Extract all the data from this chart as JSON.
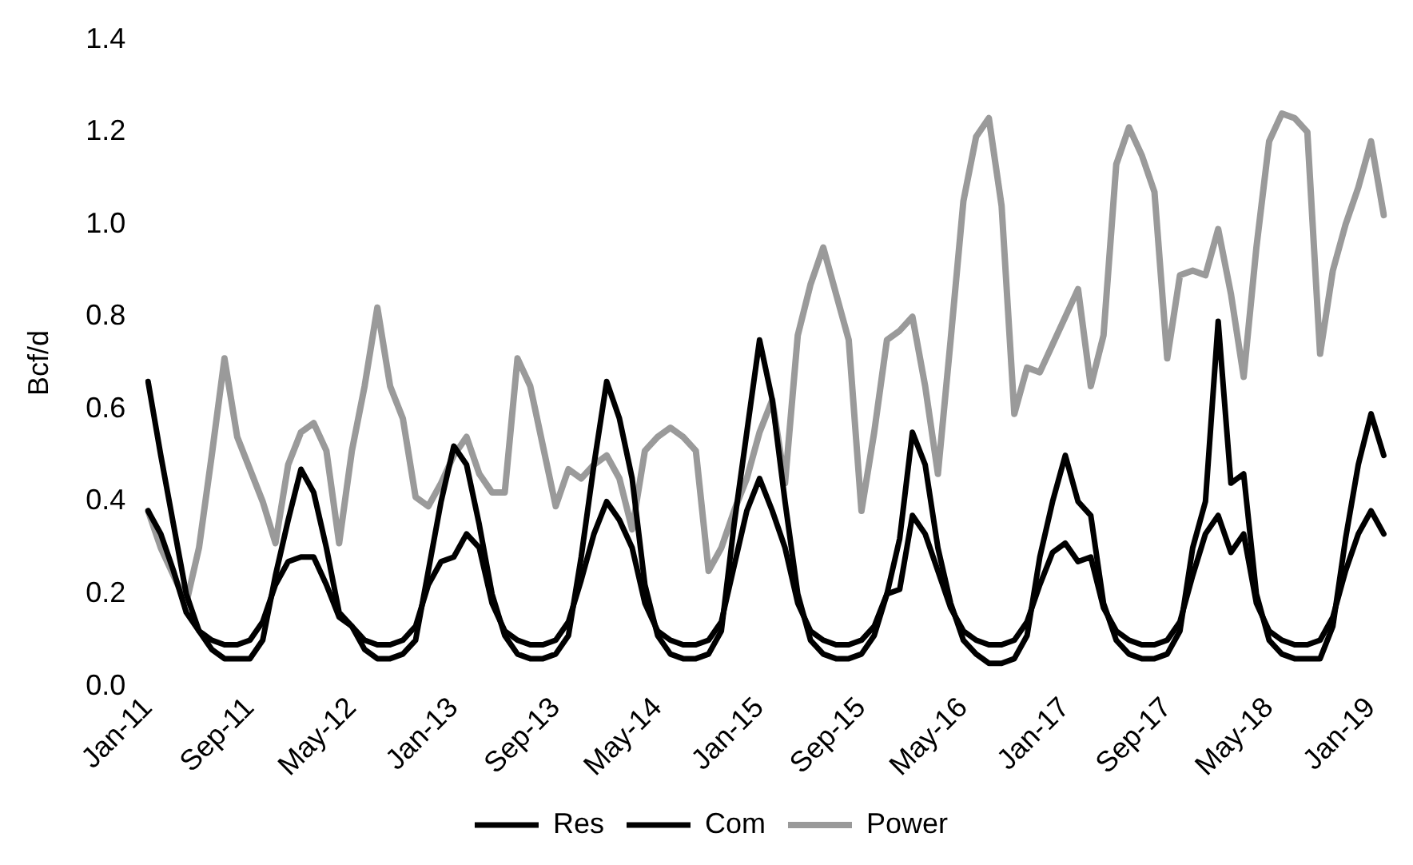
{
  "chart_data": {
    "type": "line",
    "ylabel": "Bcf/d",
    "categories": [
      "Jan-11",
      null,
      null,
      null,
      null,
      null,
      null,
      null,
      "Sep-11",
      null,
      null,
      null,
      null,
      null,
      null,
      null,
      "May-12",
      null,
      null,
      null,
      null,
      null,
      null,
      null,
      "Jan-13",
      null,
      null,
      null,
      null,
      null,
      null,
      null,
      "Sep-13",
      null,
      null,
      null,
      null,
      null,
      null,
      null,
      "May-14",
      null,
      null,
      null,
      null,
      null,
      null,
      null,
      "Jan-15",
      null,
      null,
      null,
      null,
      null,
      null,
      null,
      "Sep-15",
      null,
      null,
      null,
      null,
      null,
      null,
      null,
      "May-16",
      null,
      null,
      null,
      null,
      null,
      null,
      null,
      "Jan-17",
      null,
      null,
      null,
      null,
      null,
      null,
      null,
      "Sep-17",
      null,
      null,
      null,
      null,
      null,
      null,
      null,
      "May-18",
      null,
      null,
      null,
      null,
      null,
      null,
      null,
      "Jan-19",
      null
    ],
    "series": [
      {
        "name": "Res",
        "color": "#000000",
        "values": [
          0.66,
          0.5,
          0.35,
          0.2,
          0.12,
          0.08,
          0.06,
          0.06,
          0.06,
          0.1,
          0.24,
          0.36,
          0.47,
          0.42,
          0.3,
          0.16,
          0.13,
          0.08,
          0.06,
          0.06,
          0.07,
          0.1,
          0.25,
          0.4,
          0.52,
          0.48,
          0.35,
          0.2,
          0.11,
          0.07,
          0.06,
          0.06,
          0.07,
          0.11,
          0.28,
          0.48,
          0.66,
          0.58,
          0.45,
          0.22,
          0.11,
          0.07,
          0.06,
          0.06,
          0.07,
          0.12,
          0.35,
          0.55,
          0.75,
          0.62,
          0.4,
          0.2,
          0.1,
          0.07,
          0.06,
          0.06,
          0.07,
          0.11,
          0.2,
          0.32,
          0.55,
          0.48,
          0.3,
          0.18,
          0.1,
          0.07,
          0.05,
          0.05,
          0.06,
          0.11,
          0.28,
          0.4,
          0.5,
          0.4,
          0.37,
          0.18,
          0.1,
          0.07,
          0.06,
          0.06,
          0.07,
          0.12,
          0.3,
          0.4,
          0.79,
          0.44,
          0.46,
          0.2,
          0.1,
          0.07,
          0.06,
          0.06,
          0.06,
          0.13,
          0.32,
          0.48,
          0.59,
          0.5
        ]
      },
      {
        "name": "Com",
        "color": "#000000",
        "values": [
          0.38,
          0.33,
          0.25,
          0.16,
          0.12,
          0.1,
          0.09,
          0.09,
          0.1,
          0.14,
          0.22,
          0.27,
          0.28,
          0.28,
          0.22,
          0.15,
          0.13,
          0.1,
          0.09,
          0.09,
          0.1,
          0.13,
          0.22,
          0.27,
          0.28,
          0.33,
          0.3,
          0.18,
          0.12,
          0.1,
          0.09,
          0.09,
          0.1,
          0.14,
          0.23,
          0.33,
          0.4,
          0.36,
          0.3,
          0.18,
          0.12,
          0.1,
          0.09,
          0.09,
          0.1,
          0.14,
          0.26,
          0.38,
          0.45,
          0.38,
          0.3,
          0.18,
          0.12,
          0.1,
          0.09,
          0.09,
          0.1,
          0.13,
          0.2,
          0.21,
          0.37,
          0.33,
          0.25,
          0.17,
          0.12,
          0.1,
          0.09,
          0.09,
          0.1,
          0.14,
          0.22,
          0.29,
          0.31,
          0.27,
          0.28,
          0.17,
          0.12,
          0.1,
          0.09,
          0.09,
          0.1,
          0.14,
          0.24,
          0.33,
          0.37,
          0.29,
          0.33,
          0.18,
          0.12,
          0.1,
          0.09,
          0.09,
          0.1,
          0.15,
          0.25,
          0.33,
          0.38,
          0.33
        ]
      },
      {
        "name": "Power",
        "color": "#9a9a9a",
        "values": [
          0.38,
          0.3,
          0.24,
          0.18,
          0.3,
          0.5,
          0.71,
          0.54,
          0.47,
          0.4,
          0.31,
          0.48,
          0.55,
          0.57,
          0.51,
          0.31,
          0.51,
          0.65,
          0.82,
          0.65,
          0.58,
          0.41,
          0.39,
          0.44,
          0.5,
          0.54,
          0.46,
          0.42,
          0.42,
          0.71,
          0.65,
          0.52,
          0.39,
          0.47,
          0.45,
          0.48,
          0.5,
          0.45,
          0.34,
          0.51,
          0.54,
          0.56,
          0.54,
          0.51,
          0.25,
          0.3,
          0.38,
          0.45,
          0.55,
          0.62,
          0.44,
          0.76,
          0.87,
          0.95,
          0.85,
          0.75,
          0.38,
          0.55,
          0.75,
          0.77,
          0.8,
          0.65,
          0.46,
          0.75,
          1.05,
          1.19,
          1.23,
          1.04,
          0.59,
          0.69,
          0.68,
          0.74,
          0.8,
          0.86,
          0.65,
          0.76,
          1.13,
          1.21,
          1.15,
          1.07,
          0.71,
          0.89,
          0.9,
          0.89,
          0.99,
          0.85,
          0.67,
          0.95,
          1.18,
          1.24,
          1.23,
          1.2,
          0.72,
          0.9,
          1.0,
          1.08,
          1.18,
          1.02
        ]
      }
    ],
    "ylim": [
      0,
      1.4
    ],
    "yticks": [
      {
        "value": 0,
        "label": "0.0"
      },
      {
        "value": 0.2,
        "label": "0.2"
      },
      {
        "value": 0.4,
        "label": "0.4"
      },
      {
        "value": 0.6,
        "label": "0.6"
      },
      {
        "value": 0.8,
        "label": "0.8"
      },
      {
        "value": 1,
        "label": "1.0"
      },
      {
        "value": 1.2,
        "label": "1.2"
      },
      {
        "value": 1.4,
        "label": "1.4"
      }
    ],
    "grid": false,
    "legend": "bottom",
    "marker": "none",
    "line_style": "solid"
  }
}
